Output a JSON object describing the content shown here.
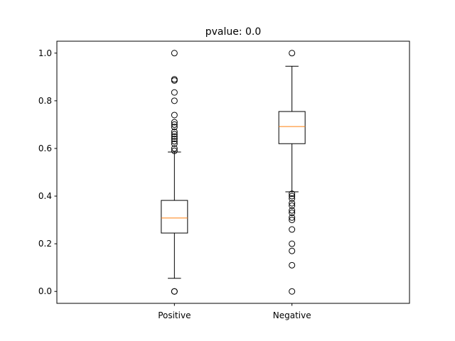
{
  "chart_data": {
    "type": "box",
    "title": "pvalue: 0.0",
    "xlabel": "",
    "ylabel": "",
    "ylim": [
      -0.05,
      1.05
    ],
    "yticks": [
      "0.0",
      "0.2",
      "0.4",
      "0.6",
      "0.8",
      "1.0"
    ],
    "categories": [
      "Positive",
      "Negative"
    ],
    "boxes": [
      {
        "name": "Positive",
        "whisker_low": 0.055,
        "q1": 0.245,
        "median": 0.308,
        "q3": 0.382,
        "whisker_high": 0.585,
        "outliers": [
          0.0,
          0.0,
          0.59,
          0.6,
          0.62,
          0.63,
          0.64,
          0.65,
          0.66,
          0.67,
          0.69,
          0.7,
          0.71,
          0.74,
          0.8,
          0.835,
          0.885,
          0.89,
          1.0
        ]
      },
      {
        "name": "Negative",
        "whisker_low": 0.418,
        "q1": 0.62,
        "median": 0.692,
        "q3": 0.755,
        "whisker_high": 0.945,
        "outliers": [
          0.0,
          0.11,
          0.17,
          0.2,
          0.26,
          0.3,
          0.31,
          0.33,
          0.34,
          0.36,
          0.37,
          0.39,
          0.4,
          0.41,
          1.0
        ]
      }
    ],
    "colors": {
      "box": "#000000",
      "median": "#ff7f0e",
      "flier": "#000000"
    }
  }
}
